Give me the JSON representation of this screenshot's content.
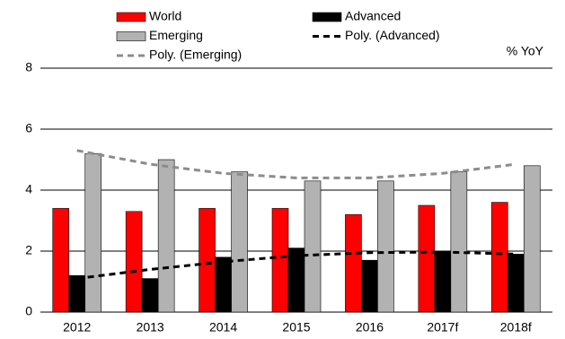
{
  "chart_data": {
    "type": "bar",
    "unit_label": "% YoY",
    "categories": [
      "2012",
      "2013",
      "2014",
      "2015",
      "2016",
      "2017f",
      "2018f"
    ],
    "series": [
      {
        "name": "World",
        "color": "#ff0000",
        "values": [
          3.4,
          3.3,
          3.4,
          3.4,
          3.2,
          3.5,
          3.6
        ]
      },
      {
        "name": "Advanced",
        "color": "#000000",
        "values": [
          1.2,
          1.1,
          1.8,
          2.1,
          1.7,
          2.0,
          1.9
        ]
      },
      {
        "name": "Emerging",
        "color": "#b2b2b2",
        "values": [
          5.2,
          5.0,
          4.6,
          4.3,
          4.3,
          4.6,
          4.8
        ]
      },
      {
        "name": "Poly. (Advanced)",
        "color": "#000000",
        "type": "line",
        "dashed": true,
        "values": [
          1.1,
          1.4,
          1.65,
          1.85,
          1.95,
          1.97,
          1.9
        ]
      },
      {
        "name": "Poly. (Emerging)",
        "color": "#8c8c8c",
        "type": "line",
        "dashed": true,
        "values": [
          5.3,
          4.85,
          4.55,
          4.4,
          4.4,
          4.55,
          4.85
        ]
      }
    ],
    "ylim": [
      0,
      8
    ],
    "yticks": [
      0,
      2,
      4,
      6,
      8
    ],
    "grid": true,
    "legend": "top"
  }
}
